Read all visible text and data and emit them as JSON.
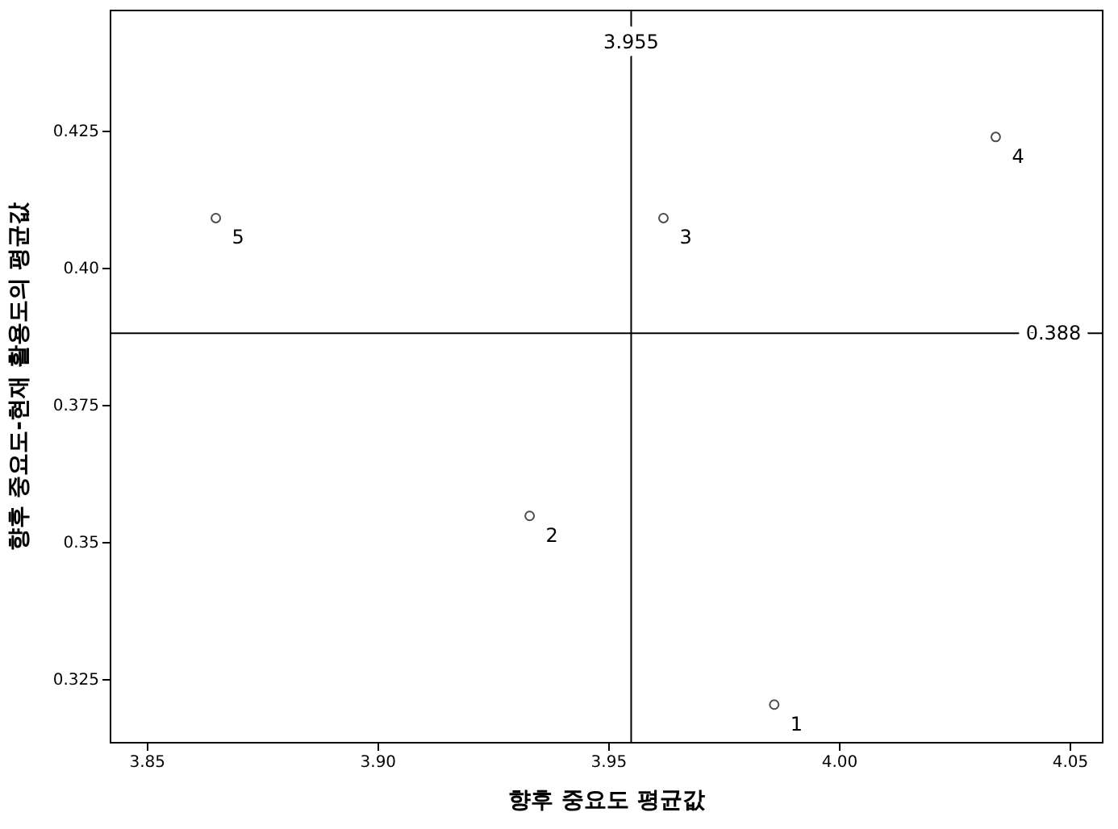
{
  "chart_data": {
    "type": "scatter",
    "xlabel": "향후 중요도 평균값",
    "ylabel": "향후 중요도-현재 활용도의 평균값",
    "series": [
      {
        "color": "#000000",
        "x": [
          3.865,
          3.933,
          3.962,
          3.986,
          4.034
        ],
        "values": [
          0.409,
          0.3547,
          0.409,
          0.3203,
          0.4238
        ]
      }
    ],
    "annotations": [
      {
        "text": "5",
        "x": 3.865,
        "y": 0.409
      },
      {
        "text": "2",
        "x": 3.933,
        "y": 0.3547
      },
      {
        "text": "3",
        "x": 3.962,
        "y": 0.409
      },
      {
        "text": "1",
        "x": 3.986,
        "y": 0.3203
      },
      {
        "text": "4",
        "x": 4.034,
        "y": 0.4238
      }
    ],
    "marker": "circle",
    "xlim": [
      3.842,
      4.057
    ],
    "xticks": [
      {
        "value": 3.85,
        "label": "3.85"
      },
      {
        "value": 3.9,
        "label": "3.90"
      },
      {
        "value": 3.95,
        "label": "3.95"
      },
      {
        "value": 4.0,
        "label": "4.00"
      },
      {
        "value": 4.05,
        "label": "4.05"
      }
    ],
    "ylim": [
      0.3135,
      0.447
    ],
    "yticks": [
      {
        "value": 0.325,
        "label": "0.325"
      },
      {
        "value": 0.35,
        "label": "0.35"
      },
      {
        "value": 0.375,
        "label": "0.375"
      },
      {
        "value": 0.4,
        "label": "0.40"
      },
      {
        "value": 0.425,
        "label": "0.425"
      }
    ],
    "ref_lines": [
      {
        "axis": "x",
        "value": 3.955,
        "label": "3.955",
        "color": "#000000"
      },
      {
        "axis": "y",
        "value": 0.388,
        "label": "0.388",
        "color": "#000000"
      }
    ],
    "grid": false
  }
}
